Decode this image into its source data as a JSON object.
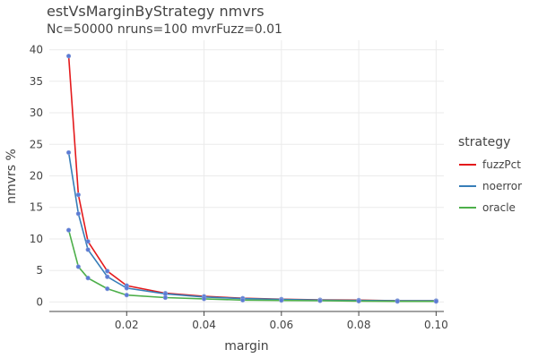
{
  "chart_data": {
    "type": "line",
    "title": "estVsMarginByStrategy nmvrs",
    "subtitle": "Nc=50000 nruns=100 mvrFuzz=0.01",
    "xlabel": "margin",
    "ylabel": "nmvrs %",
    "xlim": [
      0.0,
      0.102
    ],
    "ylim": [
      -1.5,
      41.5
    ],
    "xticks": [
      0.02,
      0.04,
      0.06,
      0.08,
      0.1
    ],
    "xtick_labels": [
      "0.02",
      "0.04",
      "0.06",
      "0.08",
      "0.10"
    ],
    "yticks": [
      0,
      5,
      10,
      15,
      20,
      25,
      30,
      35,
      40
    ],
    "ytick_labels": [
      "0",
      "5",
      "10",
      "15",
      "20",
      "25",
      "30",
      "35",
      "40"
    ],
    "grid": true,
    "legend_title": "strategy",
    "legend_position": "right",
    "marker_color": "#5b7bd5",
    "series": [
      {
        "name": "fuzzPct",
        "color": "#e41a1c",
        "x": [
          0.005,
          0.0075,
          0.01,
          0.015,
          0.02,
          0.03,
          0.04,
          0.05,
          0.06,
          0.07,
          0.08,
          0.09,
          0.1
        ],
        "y": [
          39.0,
          17.0,
          9.6,
          4.9,
          2.6,
          1.4,
          0.9,
          0.6,
          0.45,
          0.35,
          0.3,
          0.2,
          0.2
        ]
      },
      {
        "name": "noerror",
        "color": "#377eb8",
        "x": [
          0.005,
          0.0075,
          0.01,
          0.015,
          0.02,
          0.03,
          0.04,
          0.05,
          0.06,
          0.07,
          0.08,
          0.09,
          0.1
        ],
        "y": [
          23.7,
          14.0,
          8.3,
          4.0,
          2.2,
          1.3,
          0.8,
          0.55,
          0.4,
          0.3,
          0.25,
          0.2,
          0.2
        ]
      },
      {
        "name": "oracle",
        "color": "#4daf4a",
        "x": [
          0.005,
          0.0075,
          0.01,
          0.015,
          0.02,
          0.03,
          0.04,
          0.05,
          0.06,
          0.07,
          0.08,
          0.09,
          0.1
        ],
        "y": [
          11.4,
          5.6,
          3.8,
          2.1,
          1.1,
          0.7,
          0.5,
          0.3,
          0.25,
          0.2,
          0.15,
          0.1,
          0.1
        ]
      }
    ]
  }
}
